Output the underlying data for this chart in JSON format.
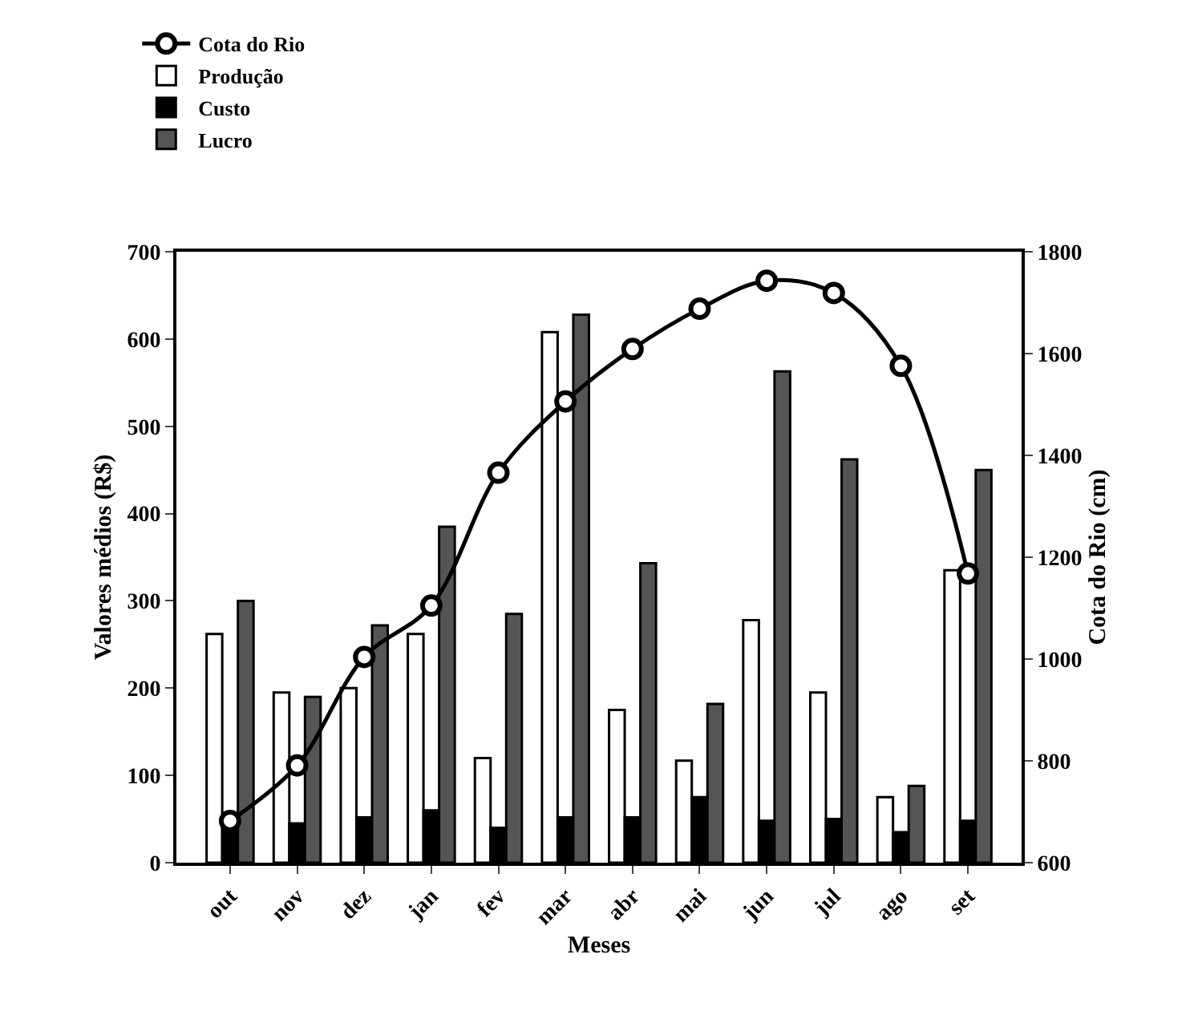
{
  "chart_data": {
    "type": "bar",
    "xlabel": "Meses",
    "ylabel": "Valores médios (R$)",
    "y2label": "Cota do Rio (cm)",
    "categories": [
      "out",
      "nov",
      "dez",
      "jan",
      "fev",
      "mar",
      "abr",
      "mai",
      "jun",
      "jul",
      "ago",
      "set"
    ],
    "series": [
      {
        "name": "Cota do Rio",
        "type": "line",
        "axis": "y2",
        "color": "#000000",
        "marker": "circle",
        "values": [
          682,
          791,
          1004,
          1105,
          1366,
          1506,
          1609,
          1688,
          1743,
          1719,
          1576,
          1168
        ]
      },
      {
        "name": "Produção",
        "color": "#ffffff",
        "values": [
          262,
          195,
          200,
          262,
          120,
          608,
          175,
          117,
          278,
          195,
          75,
          335
        ]
      },
      {
        "name": "Custo",
        "color": "#000000",
        "values": [
          45,
          45,
          52,
          60,
          40,
          52,
          52,
          75,
          48,
          50,
          35,
          48
        ]
      },
      {
        "name": "Lucro",
        "color": "#555555",
        "values": [
          300,
          190,
          272,
          385,
          285,
          628,
          343,
          182,
          563,
          462,
          88,
          450
        ]
      }
    ],
    "ylim": [
      0,
      700
    ],
    "yticks": [
      0,
      100,
      200,
      300,
      400,
      500,
      600,
      700
    ],
    "y2lim": [
      600,
      1800
    ],
    "y2ticks": [
      600,
      800,
      1000,
      1200,
      1400,
      1600,
      1800
    ],
    "grid": false,
    "legend": "top left"
  }
}
